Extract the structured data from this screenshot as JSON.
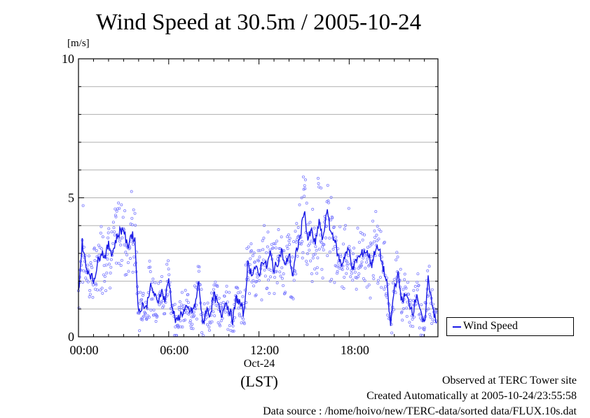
{
  "title": "Wind Speed at 30.5m / 2005-10-24",
  "footer": {
    "line1": "Observed at TERC Tower site",
    "line2": "Created Automatically at 2005-10-24/23:55:58",
    "line3": "Data source : /home/hoivo/new/TERC-data/sorted  data/FLUX.10s.dat"
  },
  "colors": {
    "line": "#1a1ae6",
    "points": "#8080ff",
    "grid": "#b0b0b0"
  },
  "chart_data": {
    "type": "line",
    "ylabel": "[m/s]",
    "xlabel": "(LST)",
    "date_label": "Oct-24",
    "ylim": [
      0,
      10
    ],
    "xlim_hours": [
      0,
      23.9
    ],
    "y_ticks": [
      "0",
      "5",
      "10"
    ],
    "x_ticks": [
      "00:00",
      "06:00",
      "12:00",
      "18:00"
    ],
    "grid": "horizontal",
    "legend_position": "bottom-right outside",
    "series": [
      {
        "name": "Wind Speed",
        "style": "line with scattered points",
        "x_hours": [
          0.0,
          0.25,
          0.5,
          0.75,
          1.0,
          1.25,
          1.5,
          1.75,
          2.0,
          2.25,
          2.5,
          2.75,
          3.0,
          3.25,
          3.5,
          3.75,
          4.0,
          4.25,
          4.5,
          4.75,
          5.0,
          5.25,
          5.5,
          5.75,
          6.0,
          6.25,
          6.5,
          6.75,
          7.0,
          7.25,
          7.5,
          7.75,
          8.0,
          8.25,
          8.5,
          8.75,
          9.0,
          9.25,
          9.5,
          9.75,
          10.0,
          10.25,
          10.5,
          10.75,
          11.0,
          11.25,
          11.5,
          11.75,
          12.0,
          12.25,
          12.5,
          12.75,
          13.0,
          13.25,
          13.5,
          13.75,
          14.0,
          14.25,
          14.5,
          14.75,
          15.0,
          15.25,
          15.5,
          15.75,
          16.0,
          16.25,
          16.5,
          16.75,
          17.0,
          17.25,
          17.5,
          17.75,
          18.0,
          18.25,
          18.5,
          18.75,
          19.0,
          19.25,
          19.5,
          19.75,
          20.0,
          20.25,
          20.5,
          20.75,
          21.0,
          21.25,
          21.5,
          21.75,
          22.0,
          22.25,
          22.5,
          22.75,
          23.0,
          23.25,
          23.5,
          23.75
        ],
        "values": [
          1.6,
          3.4,
          2.5,
          2.3,
          2.0,
          2.6,
          3.1,
          2.9,
          3.3,
          3.0,
          3.5,
          3.8,
          3.9,
          3.2,
          3.7,
          3.5,
          0.8,
          1.2,
          1.0,
          1.8,
          1.6,
          1.2,
          1.7,
          1.3,
          2.1,
          1.0,
          0.5,
          0.8,
          0.9,
          1.0,
          0.9,
          1.1,
          2.0,
          0.4,
          1.0,
          0.8,
          1.5,
          1.2,
          0.7,
          1.3,
          1.0,
          0.6,
          1.4,
          1.2,
          0.8,
          2.6,
          2.3,
          2.5,
          2.2,
          2.8,
          2.5,
          3.0,
          2.4,
          2.7,
          3.1,
          2.5,
          3.0,
          2.2,
          3.1,
          3.6,
          4.6,
          3.5,
          3.8,
          3.3,
          4.2,
          3.4,
          4.6,
          3.8,
          3.6,
          2.9,
          2.6,
          3.0,
          3.1,
          2.4,
          2.8,
          2.9,
          3.1,
          3.0,
          2.6,
          3.2,
          3.1,
          2.5,
          1.9,
          0.4,
          1.8,
          2.2,
          1.3,
          1.5,
          1.2,
          0.9,
          1.6,
          0.8,
          0.4,
          2.1,
          1.3,
          0.5
        ]
      }
    ]
  }
}
